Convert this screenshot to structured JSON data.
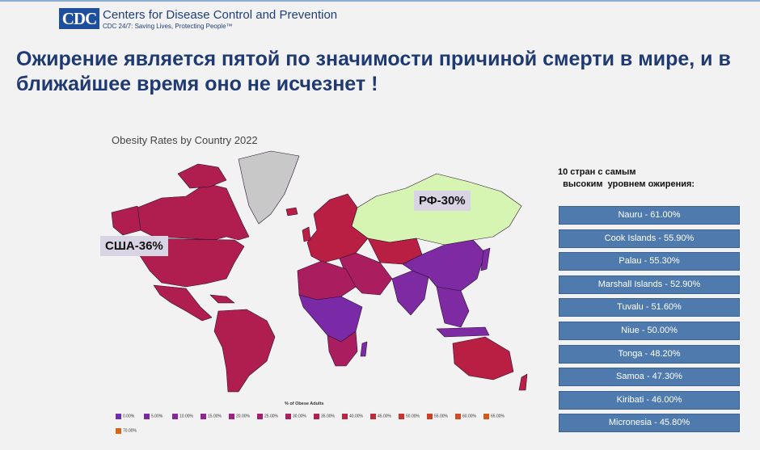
{
  "header": {
    "logo_text": "CDC",
    "org_name": "Centers for Disease Control and Prevention",
    "tagline": "CDC 24/7: Saving Lives, Protecting People™"
  },
  "headline": "Ожирение является пятой по значимости причиной смерти в мире, и в ближайшее время оно не исчезнет !",
  "map": {
    "title": "Obesity Rates by Country 2022",
    "callout_usa": "США-36%",
    "callout_russia": "РФ-30%",
    "legend_title": "% of Obese Adults",
    "legend": [
      {
        "label": "0.00%",
        "color": "#6d2fb1"
      },
      {
        "label": "5.00%",
        "color": "#7a2aa6"
      },
      {
        "label": "10.00%",
        "color": "#86289b"
      },
      {
        "label": "15.00%",
        "color": "#922490"
      },
      {
        "label": "20.00%",
        "color": "#9c2180"
      },
      {
        "label": "25.00%",
        "color": "#a51e6f"
      },
      {
        "label": "30.00%",
        "color": "#ad1d5f"
      },
      {
        "label": "35.00%",
        "color": "#b31e50"
      },
      {
        "label": "40.00%",
        "color": "#b92444"
      },
      {
        "label": "45.00%",
        "color": "#c02b3a"
      },
      {
        "label": "50.00%",
        "color": "#c63631"
      },
      {
        "label": "55.00%",
        "color": "#cb4128"
      },
      {
        "label": "60.00%",
        "color": "#d04c22"
      },
      {
        "label": "65.00%",
        "color": "#d4581c"
      },
      {
        "label": "70.00%",
        "color": "#d86418"
      }
    ],
    "colors": {
      "americas": "#b01e4f",
      "europe": "#b81f43",
      "africa_high": "#aa1d5f",
      "africa_low": "#7a2aa6",
      "asia_low": "#7d2aa3",
      "russia": "#d6f5b3",
      "greenland": "#c8c8c8",
      "border": "#2a1030"
    }
  },
  "top_countries": {
    "title": "10 стран с самым\n  высоким  уровнем ожирения:",
    "items": [
      "Nauru - 61.00%",
      "Cook Islands - 55.90%",
      "Palau - 55.30%",
      "Marshall Islands - 52.90%",
      "Tuvalu - 51.60%",
      "Niue - 50.00%",
      "Tonga - 48.20%",
      "Samoa - 47.30%",
      "Kiribati - 46.00%",
      "Micronesia - 45.80%"
    ]
  }
}
